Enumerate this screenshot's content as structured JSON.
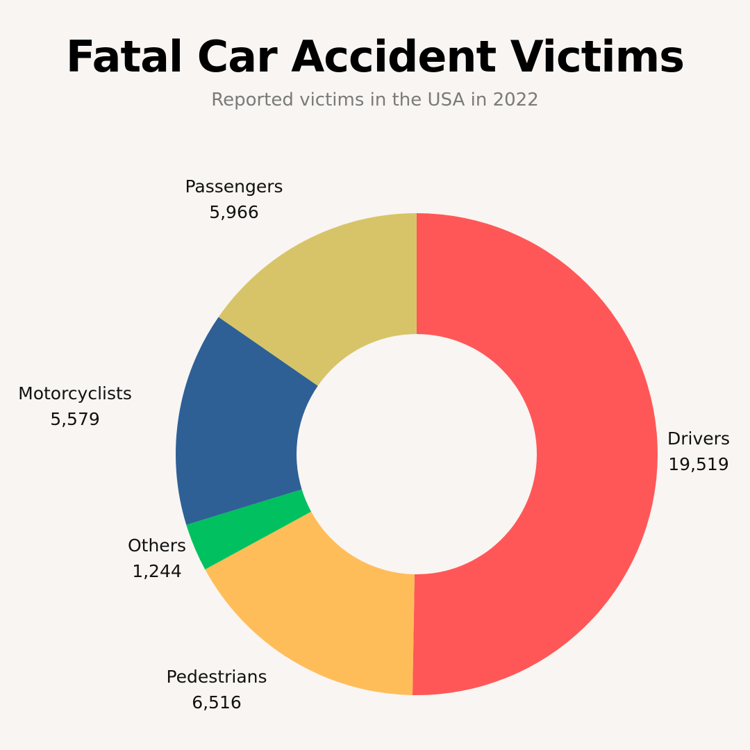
{
  "header": {
    "title": "Fatal Car Accident Victims",
    "subtitle": "Reported victims in the USA in 2022"
  },
  "chart_data": {
    "type": "pie",
    "variant": "donut",
    "title": "Fatal Car Accident Victims",
    "subtitle": "Reported victims in the USA in 2022",
    "start_angle_deg": 0,
    "direction": "clockwise",
    "slices": [
      {
        "label": "Drivers",
        "value": 19519,
        "value_label": "19,519",
        "color": "#ff5757"
      },
      {
        "label": "Pedestrians",
        "value": 6516,
        "value_label": "6,516",
        "color": "#ffbd59"
      },
      {
        "label": "Others",
        "value": 1244,
        "value_label": "1,244",
        "color": "#00c060"
      },
      {
        "label": "Motorcyclists",
        "value": 5579,
        "value_label": "5,579",
        "color": "#2e6096"
      },
      {
        "label": "Passengers",
        "value": 5966,
        "value_label": "5,966",
        "color": "#d7c468"
      }
    ],
    "background_color": "#f8f5f2"
  }
}
